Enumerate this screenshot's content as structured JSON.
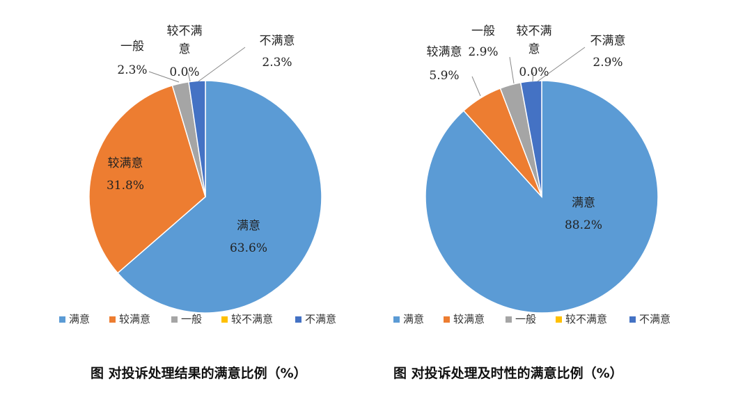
{
  "colors": {
    "满意": "#5b9bd5",
    "较满意": "#ed7d31",
    "一般": "#a5a5a5",
    "较不满意": "#ffc000",
    "不满意": "#4472c4"
  },
  "chart_data": [
    {
      "type": "pie",
      "categories": [
        "满意",
        "较满意",
        "一般",
        "较不满意",
        "不满意"
      ],
      "values": [
        63.6,
        31.8,
        2.3,
        0.0,
        2.3
      ],
      "value_labels": [
        "63.6%",
        "31.8%",
        "2.3%",
        "0.0%",
        "2.3%"
      ],
      "label_lines": [
        [
          "满意"
        ],
        [
          "较满意"
        ],
        [
          "一般"
        ],
        [
          "较不满",
          "意"
        ],
        [
          "不满意"
        ]
      ],
      "legend": [
        "满意",
        "较满意",
        "一般",
        "较不满意",
        "不满意"
      ],
      "legend_position": "bottom",
      "caption": "图  对投诉处理结果的满意比例（%）"
    },
    {
      "type": "pie",
      "categories": [
        "满意",
        "较满意",
        "一般",
        "较不满意",
        "不满意"
      ],
      "values": [
        88.2,
        5.9,
        2.9,
        0.0,
        2.9
      ],
      "value_labels": [
        "88.2%",
        "5.9%",
        "2.9%",
        "0.0%",
        "2.9%"
      ],
      "label_lines": [
        [
          "满意"
        ],
        [
          "较满意"
        ],
        [
          "一般"
        ],
        [
          "较不满",
          "意"
        ],
        [
          "不满意"
        ]
      ],
      "legend": [
        "满意",
        "较满意",
        "一般",
        "较不满意",
        "不满意"
      ],
      "legend_position": "bottom",
      "caption": "图  对投诉处理及时性的满意比例（%）"
    }
  ]
}
